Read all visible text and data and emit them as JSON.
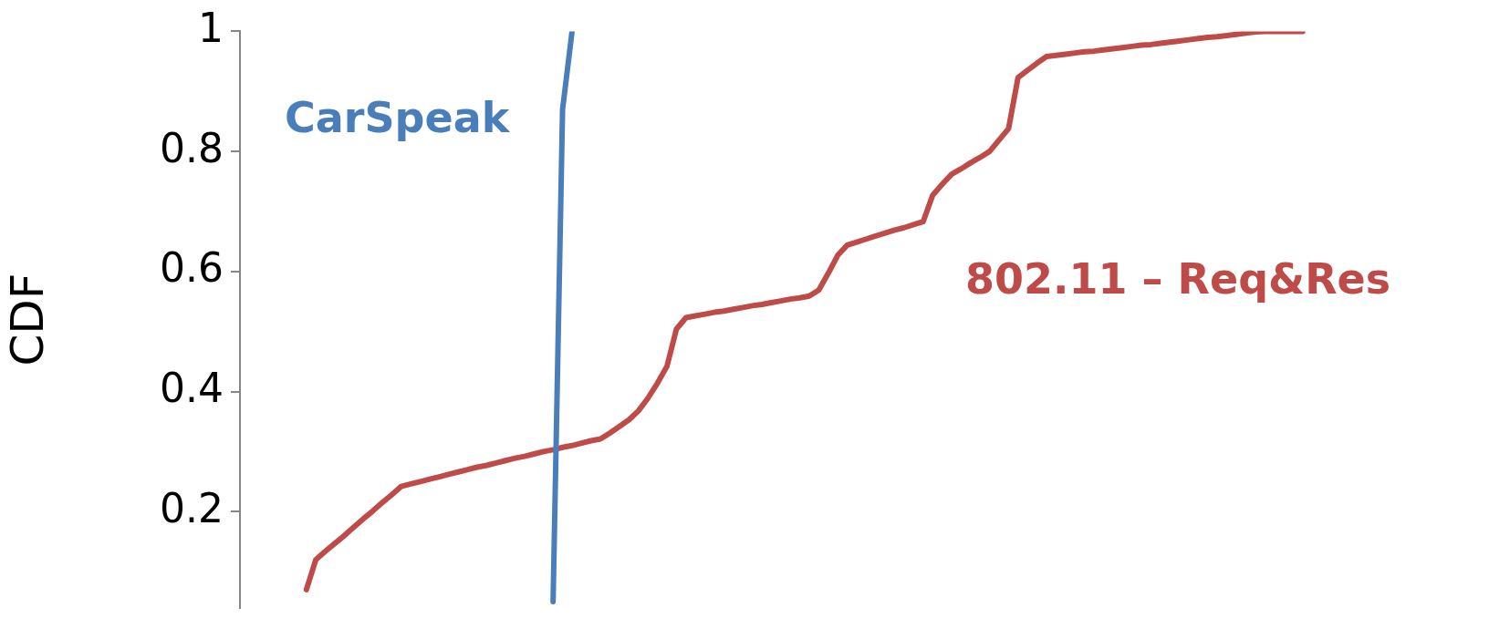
{
  "chart_data": {
    "type": "line",
    "ylabel": "CDF",
    "categories": [
      null,
      null,
      null,
      null,
      null,
      null,
      null,
      null,
      null,
      null,
      null,
      null,
      null,
      null,
      null,
      null,
      null,
      null,
      null,
      null,
      null,
      null,
      null,
      null,
      null,
      null,
      null,
      null,
      null,
      null,
      null,
      null,
      null,
      null,
      null,
      null,
      null,
      null,
      null,
      null,
      null,
      null,
      null,
      null,
      null,
      null,
      null,
      null,
      null,
      null,
      null,
      null,
      null,
      null,
      null,
      null,
      null,
      null,
      null,
      null,
      null,
      null,
      null,
      null,
      null,
      null,
      null,
      null,
      null,
      null,
      null,
      null,
      null,
      null,
      null,
      null,
      null,
      null,
      null,
      null,
      null,
      null,
      null,
      null,
      null,
      null,
      null,
      null,
      null,
      null,
      null,
      null,
      null,
      null,
      null,
      null,
      null,
      null,
      null,
      null,
      null,
      null,
      null,
      null,
      null,
      null,
      null,
      null,
      null,
      null,
      null,
      null,
      null,
      null,
      null,
      null,
      null,
      null,
      null,
      null,
      null,
      null,
      null,
      null,
      null,
      null,
      null,
      null,
      null,
      null,
      null
    ],
    "series": [
      {
        "name": "CarSpeak",
        "color": "#4a7ebb",
        "values": [
          null,
          null,
          null,
          null,
          null,
          null,
          null,
          null,
          null,
          null,
          null,
          null,
          null,
          null,
          null,
          null,
          null,
          null,
          null,
          null,
          null,
          null,
          null,
          null,
          null,
          null,
          null,
          null,
          null,
          null,
          null,
          null,
          null,
          0.05,
          0.87,
          1,
          null,
          null,
          null,
          null,
          null,
          null,
          null,
          null,
          null,
          null,
          null,
          null,
          null,
          null,
          null,
          null,
          null,
          null,
          null,
          null,
          null,
          null,
          null,
          null,
          null,
          null,
          null,
          null,
          null,
          null,
          null,
          null,
          null,
          null,
          null,
          null,
          null,
          null,
          null,
          null,
          null,
          null,
          null,
          null,
          null,
          null,
          null,
          null,
          null,
          null,
          null,
          null,
          null,
          null,
          null,
          null,
          null,
          null,
          null,
          null,
          null,
          null,
          null,
          null,
          null,
          null,
          null,
          null,
          null,
          null,
          null,
          null,
          null,
          null,
          null,
          null,
          null,
          null,
          null,
          null,
          null,
          null,
          null,
          null,
          null,
          null,
          null,
          null,
          null,
          null,
          null,
          null,
          null,
          null,
          null
        ]
      },
      {
        "name": "802.11 – Req&Res",
        "color": "#be4b48",
        "values": [
          null,
          null,
          null,
          null,
          null,
          null,
          null,
          0.07,
          0.12,
          0.134,
          0.147,
          0.16,
          0.174,
          0.188,
          0.201,
          0.215,
          0.228,
          0.242,
          0.246,
          0.25,
          0.254,
          0.258,
          0.262,
          0.266,
          0.27,
          0.274,
          0.277,
          0.281,
          0.285,
          0.289,
          0.292,
          0.296,
          0.3,
          0.303,
          0.307,
          0.31,
          0.314,
          0.318,
          0.321,
          0.331,
          0.342,
          0.353,
          0.368,
          0.389,
          0.414,
          0.442,
          0.504,
          0.523,
          0.526,
          0.529,
          0.532,
          0.534,
          0.537,
          0.54,
          0.543,
          0.545,
          0.548,
          0.551,
          0.554,
          0.556,
          0.559,
          0.569,
          0.597,
          0.627,
          0.644,
          0.649,
          0.654,
          0.659,
          0.664,
          0.669,
          0.673,
          0.678,
          0.683,
          0.727,
          0.745,
          0.762,
          0.771,
          0.781,
          0.79,
          0.8,
          0.819,
          0.838,
          0.923,
          0.935,
          0.947,
          0.958,
          0.96,
          0.962,
          0.964,
          0.966,
          0.967,
          0.969,
          0.971,
          0.973,
          0.975,
          0.977,
          0.978,
          0.98,
          0.982,
          0.984,
          0.986,
          0.988,
          0.99,
          0.991,
          0.993,
          0.995,
          0.997,
          0.999,
          1,
          1,
          1,
          1,
          1,
          null,
          null,
          null,
          null,
          null,
          null,
          null,
          null,
          null,
          null,
          null,
          null,
          null,
          null,
          null,
          null,
          null,
          null
        ]
      }
    ],
    "ylim": [
      0.04,
      1
    ],
    "yticks": [
      0.2,
      0.4,
      0.6,
      0.8,
      1
    ],
    "tick_labels": "y",
    "grid": false,
    "legend": false,
    "marker": "none",
    "line_style": "solid"
  }
}
